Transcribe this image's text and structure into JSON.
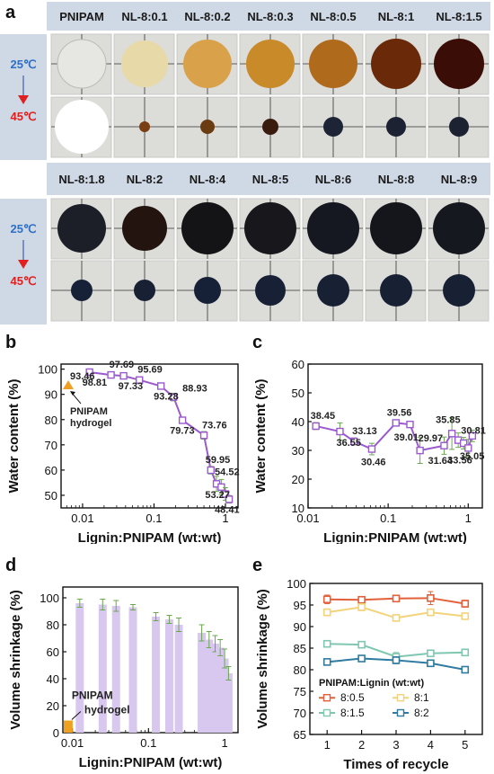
{
  "panel_a": {
    "letter": "a",
    "row1_labels": [
      "PNIPAM",
      "NL-8:0.1",
      "NL-8:0.2",
      "NL-8:0.3",
      "NL-8:0.5",
      "NL-8:1",
      "NL-8:1.5"
    ],
    "row2_labels": [
      "NL-8:1.8",
      "NL-8:2",
      "NL-8:4",
      "NL-8:5",
      "NL-8:6",
      "NL-8:8",
      "NL-8:9"
    ],
    "temp_low": "25℃",
    "temp_high": "45℃",
    "swatch_colors_top_row1": [
      "#e6e6e2",
      "#e8d9a8",
      "#d9a24a",
      "#c98a2a",
      "#b06a1c",
      "#6a2a0a",
      "#3a0e06"
    ],
    "swatch_colors_top_row2": [
      "#1c1e28",
      "#23140f",
      "#141416",
      "#18181c",
      "#151820",
      "#14161c",
      "#161820"
    ],
    "swatch_colors_bottom_row1": [
      "#ffffff",
      "#7a3e14",
      "#6a3c12",
      "#3a1c0e",
      "#1c2436",
      "#1c2232",
      "#1c2232"
    ],
    "swatch_colors_bottom_row2": [
      "#162036",
      "#182034",
      "#162036",
      "#182036",
      "#182034",
      "#182034",
      "#182034"
    ],
    "colors": {
      "strip": "#cfd9e6",
      "accent_blue": "#2f6fc4",
      "accent_red": "#e0201e",
      "purple": "#9b59d0",
      "green": "#6aa84f",
      "orange": "#f0a020"
    }
  },
  "chart_data": [
    {
      "type": "line",
      "panel": "b",
      "xlabel": "Lignin:PNIPAM (wt:wt)",
      "ylabel": "Water content (%)",
      "x_scale": "log",
      "xlim": [
        0.005,
        1.5
      ],
      "ylim": [
        45,
        102
      ],
      "xticks": [
        "0.01",
        "0.1",
        "1"
      ],
      "yticks": [
        50,
        60,
        70,
        80,
        90,
        100
      ],
      "x": [
        0.0125,
        0.025,
        0.0375,
        0.0625,
        0.125,
        0.1875,
        0.25,
        0.5,
        0.625,
        0.75,
        0.875,
        1.0,
        1.125
      ],
      "values": [
        98.81,
        97.69,
        97.33,
        95.69,
        93.28,
        88.93,
        79.73,
        73.76,
        59.95,
        54.52,
        53.27,
        50.5,
        48.41
      ],
      "errors": [
        1.0,
        1.0,
        1.0,
        1.0,
        1.0,
        1.5,
        1.0,
        1.5,
        1.5,
        3.0,
        3.0,
        2.5,
        1.5
      ],
      "data_labels": [
        "98.81",
        "97.69",
        "97.33",
        "95.69",
        "93.28",
        "88.93",
        "79.73",
        "73.76",
        "59.95",
        "54.52",
        "53.27",
        "",
        "48.41"
      ],
      "pnipam_point": {
        "x": 0.0063,
        "y": 93.46,
        "label": "93.46"
      },
      "annotation": [
        "PNIPAM",
        "hydrogel"
      ]
    },
    {
      "type": "line",
      "panel": "c",
      "xlabel": "Lignin:PNIPAM (wt:wt)",
      "ylabel": "Water content (%)",
      "x_scale": "log",
      "xlim": [
        0.01,
        1.5
      ],
      "ylim": [
        10,
        60
      ],
      "xticks": [
        "0.01",
        "0.1",
        "1"
      ],
      "yticks": [
        10,
        20,
        30,
        40,
        50,
        60
      ],
      "x": [
        0.0125,
        0.025,
        0.0375,
        0.0625,
        0.125,
        0.1875,
        0.25,
        0.5,
        0.625,
        0.75,
        0.875,
        1.0,
        1.125
      ],
      "values": [
        38.45,
        36.55,
        33.13,
        30.46,
        39.56,
        39.01,
        29.97,
        31.64,
        35.85,
        33.56,
        32.5,
        30.81,
        35.05
      ],
      "errors": [
        1.2,
        3.0,
        1.2,
        2.0,
        1.0,
        1.0,
        4.5,
        3.0,
        5.5,
        2.5,
        2.0,
        3.0,
        2.0
      ],
      "data_labels": [
        "38.45",
        "36.55",
        "33.13",
        "30.46",
        "39.56",
        "39.01",
        "29.97",
        "31.64",
        "35.85",
        "33.56",
        "",
        "30.81",
        "35.05"
      ]
    },
    {
      "type": "bar",
      "panel": "d",
      "xlabel": "Lignin:PNIPAM (wt:wt)",
      "ylabel": "Volume shrinkage (%)",
      "x_scale": "log",
      "xlim": [
        0.0075,
        1.5
      ],
      "ylim": [
        0,
        108
      ],
      "xticks": [
        "0.01",
        "0.1",
        "1"
      ],
      "yticks": [
        0,
        20,
        40,
        60,
        80,
        100
      ],
      "x": [
        0.0125,
        0.025,
        0.0375,
        0.0625,
        0.125,
        0.1875,
        0.25,
        0.5,
        0.625,
        0.75,
        0.875,
        1.0,
        1.125
      ],
      "values": [
        96,
        95,
        94,
        93,
        86,
        84,
        80,
        74,
        69,
        66,
        63,
        55,
        44
      ],
      "errors": [
        3,
        4,
        4,
        2,
        3,
        3,
        5,
        6,
        6,
        6,
        6,
        7,
        5
      ],
      "pnipam_bar": {
        "x": 0.0088,
        "y": 9
      },
      "annotation": [
        "PNIPAM",
        "hydrogel"
      ]
    },
    {
      "type": "line",
      "panel": "e",
      "xlabel": "Times of recycle",
      "ylabel": "Volume shrinkage (%)",
      "xlim": [
        0.5,
        5.5
      ],
      "ylim": [
        65,
        100
      ],
      "xticks": [
        "1",
        "2",
        "3",
        "4",
        "5"
      ],
      "yticks": [
        65,
        70,
        75,
        80,
        85,
        90,
        95,
        100
      ],
      "categories": [
        1,
        2,
        3,
        4,
        5
      ],
      "legend_title": "PNIPAM:Lignin (wt:wt)",
      "series": [
        {
          "name": "8:0.5",
          "color": "#e2603a",
          "values": [
            96.3,
            96.2,
            96.5,
            96.6,
            95.3
          ],
          "errors": [
            1.0,
            0.5,
            0.5,
            1.5,
            0.8
          ]
        },
        {
          "name": "8:1",
          "color": "#f2d37a",
          "values": [
            93.3,
            94.5,
            92.0,
            93.3,
            92.4
          ],
          "errors": [
            0.8,
            0.8,
            0.5,
            0.5,
            0.5
          ]
        },
        {
          "name": "8:1.5",
          "color": "#7fc7b0",
          "values": [
            86.0,
            85.8,
            83.0,
            83.8,
            84.0
          ],
          "errors": [
            0.5,
            0.5,
            1.0,
            0.5,
            0.5
          ]
        },
        {
          "name": "8:2",
          "color": "#2e7aa0",
          "values": [
            81.8,
            82.6,
            82.2,
            81.5,
            80.0
          ],
          "errors": [
            0.5,
            0.5,
            0.8,
            0.5,
            0.5
          ]
        }
      ]
    }
  ]
}
